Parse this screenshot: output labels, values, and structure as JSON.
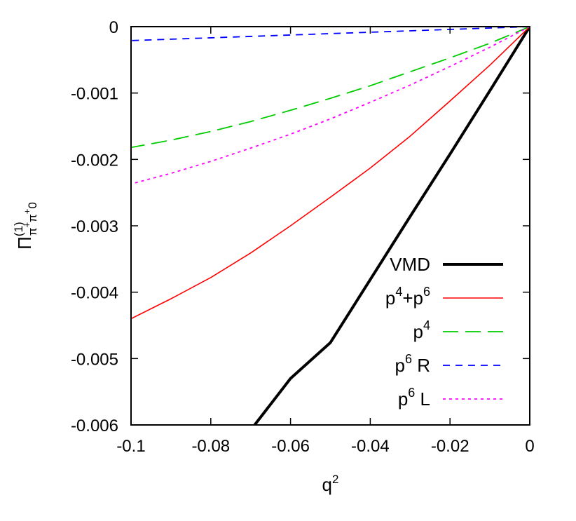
{
  "chart_data": {
    "type": "line",
    "title": "",
    "xlabel": {
      "base": "q",
      "sup": "2"
    },
    "ylabel": {
      "base": "Π",
      "sup": "(1)",
      "sub": "π",
      "subsup": "+",
      "sub2": "π",
      "sub2sup": "+",
      "sub3": "0"
    },
    "xlim": [
      -0.1,
      0
    ],
    "ylim": [
      -0.006,
      0
    ],
    "xticks": [
      -0.1,
      -0.08,
      -0.06,
      -0.04,
      -0.02,
      0
    ],
    "xtick_labels": [
      "-0.1",
      "-0.08",
      "-0.06",
      "-0.04",
      "-0.02",
      "0"
    ],
    "yticks": [
      0,
      -0.001,
      -0.002,
      -0.003,
      -0.004,
      -0.005,
      -0.006
    ],
    "ytick_labels": [
      "0",
      "-0.001",
      "-0.002",
      "-0.003",
      "-0.004",
      "-0.005",
      "-0.006"
    ],
    "grid": false,
    "legend_position": "bottom-right",
    "series": [
      {
        "name": "VMD",
        "legend": {
          "base": "VMD"
        },
        "color": "#000000",
        "style": "solid-thick",
        "x": [
          0,
          -0.01,
          -0.02,
          -0.03,
          -0.04,
          -0.05,
          -0.06,
          -0.069
        ],
        "y": [
          0,
          -0.000965,
          -0.00192,
          -0.00286,
          -0.00381,
          -0.00476,
          -0.0053,
          -0.006
        ]
      },
      {
        "name": "p4+p6",
        "legend": {
          "parts": [
            [
              "p",
              ""
            ],
            [
              "4",
              "sup"
            ],
            [
              "+p",
              ""
            ],
            [
              "6",
              "sup"
            ]
          ]
        },
        "color": "#ff0000",
        "style": "solid",
        "x": [
          0,
          -0.01,
          -0.02,
          -0.03,
          -0.04,
          -0.05,
          -0.06,
          -0.07,
          -0.08,
          -0.09,
          -0.1
        ],
        "y": [
          0,
          -0.00058,
          -0.00112,
          -0.00165,
          -0.00213,
          -0.00257,
          -0.003,
          -0.00341,
          -0.00378,
          -0.0041,
          -0.0044
        ]
      },
      {
        "name": "p4",
        "legend": {
          "parts": [
            [
              "p",
              ""
            ],
            [
              "4",
              "sup"
            ]
          ]
        },
        "color": "#00cc00",
        "style": "long-dash",
        "x": [
          0,
          -0.01,
          -0.02,
          -0.03,
          -0.04,
          -0.05,
          -0.06,
          -0.07,
          -0.08,
          -0.09,
          -0.1
        ],
        "y": [
          0,
          -0.00025,
          -0.00047,
          -0.00068,
          -0.00089,
          -0.00108,
          -0.00126,
          -0.00143,
          -0.00158,
          -0.00171,
          -0.00182
        ]
      },
      {
        "name": "p6 R",
        "legend": {
          "parts": [
            [
              "p",
              ""
            ],
            [
              "6",
              "sup"
            ],
            [
              " R",
              ""
            ]
          ]
        },
        "color": "#0000ff",
        "style": "short-dash",
        "x": [
          0,
          -0.1
        ],
        "y": [
          0,
          -0.00021
        ]
      },
      {
        "name": "p6 L",
        "legend": {
          "parts": [
            [
              "p",
              ""
            ],
            [
              "6",
              "sup"
            ],
            [
              " L",
              ""
            ]
          ]
        },
        "color": "#ff00ff",
        "style": "dotted",
        "x": [
          0,
          -0.01,
          -0.02,
          -0.03,
          -0.04,
          -0.05,
          -0.06,
          -0.07,
          -0.08,
          -0.09,
          -0.1
        ],
        "y": [
          0,
          -0.00031,
          -0.0006,
          -0.00088,
          -0.00114,
          -0.00139,
          -0.00162,
          -0.00183,
          -0.00203,
          -0.00221,
          -0.00237
        ]
      }
    ]
  }
}
